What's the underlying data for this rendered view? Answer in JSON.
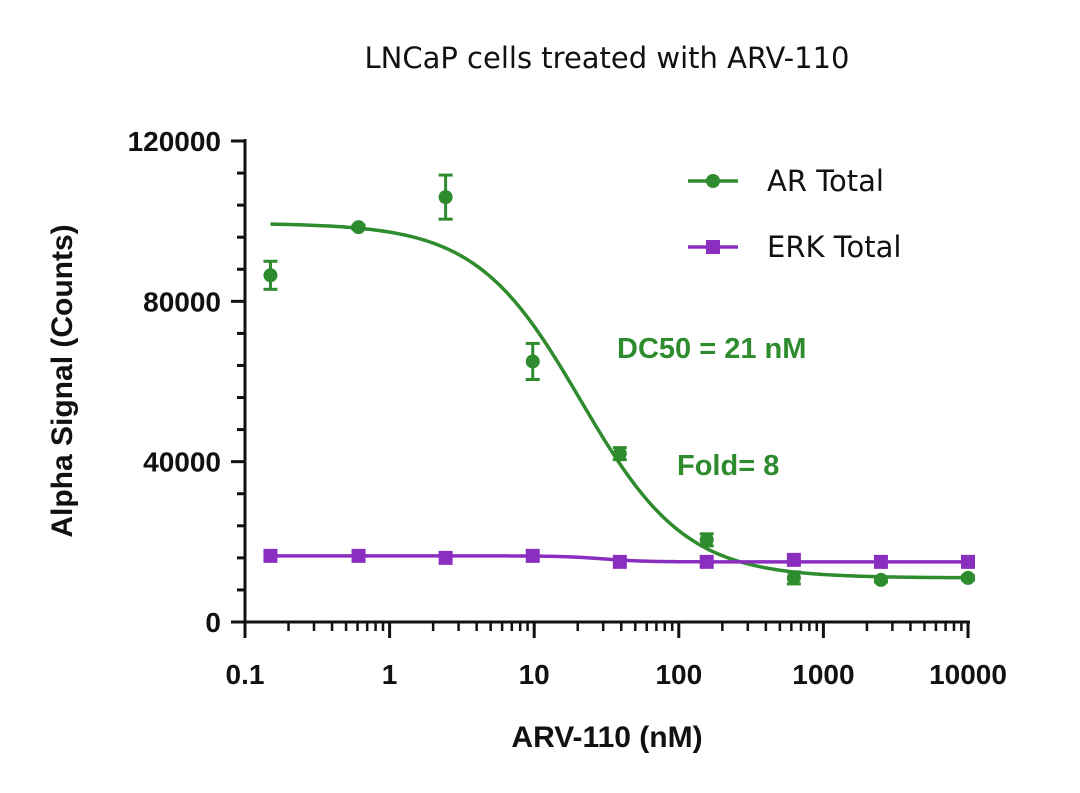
{
  "chart_data": {
    "type": "scatter",
    "title": "LNCaP cells treated with ARV-110",
    "xlabel": "ARV-110 (nM)",
    "ylabel": "Alpha Signal (Counts)",
    "x_scale": "log",
    "xlim": [
      0.1,
      10000
    ],
    "ylim": [
      0,
      120000
    ],
    "x_ticks": [
      0.1,
      1,
      10,
      100,
      1000,
      10000
    ],
    "x_tick_labels": [
      "0.1",
      "1",
      "10",
      "100",
      "1000",
      "10000"
    ],
    "y_ticks": [
      0,
      40000,
      80000,
      120000
    ],
    "y_tick_labels": [
      "0",
      "40000",
      "80000",
      "120000"
    ],
    "legend_position": "top-right",
    "series": [
      {
        "name": "AR Total",
        "color": "#2e8b2e",
        "marker": "circle",
        "x": [
          0.15,
          0.61,
          2.44,
          9.77,
          39.1,
          156,
          625,
          2500,
          10000
        ],
        "y": [
          86500,
          98500,
          106000,
          65000,
          42000,
          20500,
          11000,
          10500,
          11000
        ],
        "error": [
          3500,
          500,
          5500,
          4500,
          1500,
          1500,
          1500,
          500,
          500
        ],
        "fit": {
          "model": "4PL",
          "top": 99500,
          "bottom": 11000,
          "ec50": 21,
          "hill": 1.2
        }
      },
      {
        "name": "ERK Total",
        "color": "#8a2ec0",
        "marker": "square",
        "x": [
          0.15,
          0.61,
          2.44,
          9.77,
          39.1,
          156,
          625,
          2500,
          10000
        ],
        "y": [
          16500,
          16500,
          16000,
          16500,
          15000,
          15000,
          15500,
          15000,
          15000
        ],
        "error": [
          300,
          300,
          300,
          300,
          300,
          300,
          300,
          300,
          300
        ],
        "fit": {
          "model": "4PL",
          "top": 16500,
          "bottom": 15000,
          "ec50": 30,
          "hill": 3
        }
      }
    ],
    "annotations": [
      {
        "text": "DC50 = 21 nM",
        "color": "#2e8b2e"
      },
      {
        "text": "Fold= 8",
        "color": "#2e8b2e"
      }
    ]
  }
}
